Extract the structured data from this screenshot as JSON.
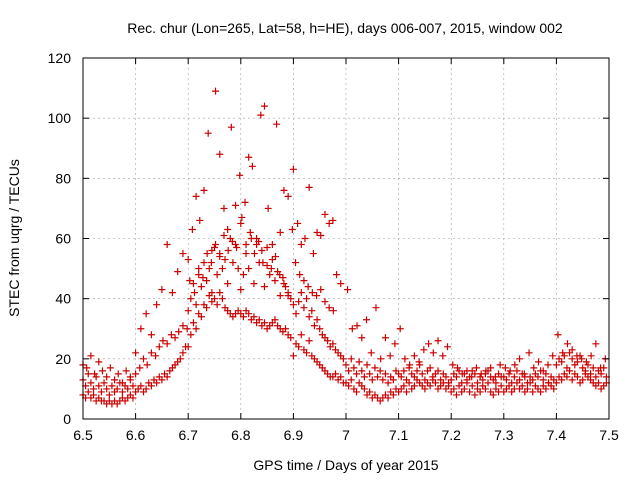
{
  "chart_data": {
    "type": "scatter",
    "title": "Rec. chur (Lon=265, Lat=58, h=HE), days 006-007, 2015, window 002",
    "xlabel": "GPS time / Days of year 2015",
    "ylabel": "STEC from uqrg / TECUs",
    "xlim": [
      6.5,
      7.5
    ],
    "ylim": [
      0,
      120
    ],
    "xticks": [
      "6.5",
      "6.6",
      "6.7",
      "6.8",
      "6.9",
      "7",
      "7.1",
      "7.2",
      "7.3",
      "7.4",
      "7.5"
    ],
    "yticks": [
      "0",
      "20",
      "40",
      "60",
      "80",
      "100",
      "120"
    ],
    "grid": true,
    "marker": "plus",
    "color": "#cc0000",
    "series": [
      {
        "x": [
          6.5,
          6.505,
          6.51,
          6.515,
          6.52,
          6.525,
          6.53,
          6.535,
          6.54,
          6.545,
          6.55,
          6.555,
          6.56,
          6.565,
          6.57,
          6.575,
          6.58,
          6.585,
          6.59,
          6.595,
          6.5,
          6.505,
          6.51,
          6.515,
          6.52,
          6.525,
          6.53,
          6.535,
          6.54,
          6.545,
          6.55,
          6.555,
          6.56,
          6.565,
          6.57,
          6.575,
          6.58,
          6.585,
          6.59,
          6.595,
          6.5,
          6.507,
          6.515,
          6.522,
          6.53,
          6.537,
          6.545,
          6.552,
          6.56,
          6.567,
          6.575,
          6.582,
          6.59,
          6.6,
          6.605,
          6.61,
          6.615,
          6.62,
          6.625,
          6.63,
          6.635,
          6.64,
          6.645,
          6.65,
          6.655,
          6.66,
          6.665,
          6.67,
          6.675,
          6.68,
          6.685,
          6.69,
          6.695,
          6.6,
          6.608,
          6.615,
          6.622,
          6.63,
          6.638,
          6.645,
          6.652,
          6.66,
          6.668,
          6.675,
          6.682,
          6.69,
          6.698,
          6.6,
          6.61,
          6.62,
          6.63,
          6.64,
          6.65,
          6.66,
          6.67,
          6.68,
          6.69,
          6.7,
          6.705,
          6.71,
          6.715,
          6.72,
          6.725,
          6.73,
          6.735,
          6.74,
          6.745,
          6.75,
          6.755,
          6.76,
          6.765,
          6.77,
          6.775,
          6.78,
          6.785,
          6.79,
          6.795,
          6.7,
          6.705,
          6.71,
          6.715,
          6.72,
          6.725,
          6.73,
          6.735,
          6.74,
          6.745,
          6.75,
          6.755,
          6.76,
          6.765,
          6.77,
          6.775,
          6.78,
          6.785,
          6.79,
          6.795,
          6.7,
          6.708,
          6.715,
          6.722,
          6.73,
          6.738,
          6.745,
          6.752,
          6.76,
          6.768,
          6.775,
          6.782,
          6.79,
          6.798,
          6.703,
          6.712,
          6.72,
          6.728,
          6.736,
          6.744,
          6.752,
          6.76,
          6.768,
          6.776,
          6.784,
          6.792,
          6.8,
          6.805,
          6.81,
          6.815,
          6.82,
          6.825,
          6.83,
          6.835,
          6.84,
          6.845,
          6.85,
          6.855,
          6.86,
          6.865,
          6.87,
          6.875,
          6.88,
          6.885,
          6.89,
          6.895,
          6.8,
          6.805,
          6.81,
          6.815,
          6.82,
          6.825,
          6.83,
          6.835,
          6.84,
          6.845,
          6.85,
          6.855,
          6.86,
          6.865,
          6.87,
          6.875,
          6.88,
          6.885,
          6.89,
          6.895,
          6.8,
          6.808,
          6.815,
          6.822,
          6.83,
          6.838,
          6.845,
          6.852,
          6.86,
          6.868,
          6.875,
          6.882,
          6.89,
          6.898,
          6.802,
          6.81,
          6.818,
          6.826,
          6.834,
          6.842,
          6.85,
          6.858,
          6.866,
          6.874,
          6.882,
          6.89,
          6.9,
          6.905,
          6.91,
          6.915,
          6.92,
          6.925,
          6.93,
          6.935,
          6.94,
          6.945,
          6.95,
          6.955,
          6.96,
          6.965,
          6.97,
          6.975,
          6.98,
          6.985,
          6.99,
          6.995,
          6.9,
          6.905,
          6.91,
          6.915,
          6.92,
          6.925,
          6.93,
          6.935,
          6.94,
          6.945,
          6.95,
          6.955,
          6.96,
          6.965,
          6.97,
          6.975,
          6.98,
          6.985,
          6.99,
          6.995,
          6.9,
          6.908,
          6.915,
          6.922,
          6.93,
          6.938,
          6.945,
          6.952,
          6.96,
          6.968,
          6.975,
          6.982,
          6.99,
          6.904,
          6.912,
          6.92,
          6.928,
          6.936,
          6.944,
          6.952,
          6.96,
          6.968,
          6.976,
          7.0,
          7.005,
          7.01,
          7.015,
          7.02,
          7.025,
          7.03,
          7.035,
          7.04,
          7.045,
          7.05,
          7.055,
          7.06,
          7.065,
          7.07,
          7.075,
          7.08,
          7.085,
          7.09,
          7.095,
          7.0,
          7.005,
          7.01,
          7.015,
          7.02,
          7.025,
          7.03,
          7.035,
          7.04,
          7.045,
          7.05,
          7.055,
          7.06,
          7.065,
          7.07,
          7.075,
          7.08,
          7.085,
          7.09,
          7.095,
          7.003,
          7.012,
          7.021,
          7.03,
          7.039,
          7.048,
          7.057,
          7.066,
          7.075,
          7.084,
          7.093,
          7.1,
          7.105,
          7.11,
          7.115,
          7.12,
          7.125,
          7.13,
          7.135,
          7.14,
          7.145,
          7.15,
          7.155,
          7.16,
          7.165,
          7.17,
          7.175,
          7.18,
          7.185,
          7.19,
          7.195,
          7.1,
          7.105,
          7.11,
          7.115,
          7.12,
          7.125,
          7.13,
          7.135,
          7.14,
          7.145,
          7.15,
          7.155,
          7.16,
          7.165,
          7.17,
          7.175,
          7.18,
          7.185,
          7.19,
          7.195,
          7.103,
          7.112,
          7.121,
          7.13,
          7.139,
          7.148,
          7.157,
          7.166,
          7.175,
          7.184,
          7.193,
          7.2,
          7.205,
          7.21,
          7.215,
          7.22,
          7.225,
          7.23,
          7.235,
          7.24,
          7.245,
          7.25,
          7.255,
          7.26,
          7.265,
          7.27,
          7.275,
          7.28,
          7.285,
          7.29,
          7.295,
          7.2,
          7.205,
          7.21,
          7.215,
          7.22,
          7.225,
          7.23,
          7.235,
          7.24,
          7.245,
          7.25,
          7.255,
          7.26,
          7.265,
          7.27,
          7.275,
          7.28,
          7.285,
          7.29,
          7.295,
          7.203,
          7.212,
          7.221,
          7.23,
          7.239,
          7.248,
          7.257,
          7.266,
          7.275,
          7.284,
          7.293,
          7.3,
          7.305,
          7.31,
          7.315,
          7.32,
          7.325,
          7.33,
          7.335,
          7.34,
          7.345,
          7.35,
          7.355,
          7.36,
          7.365,
          7.37,
          7.375,
          7.38,
          7.385,
          7.39,
          7.395,
          7.3,
          7.305,
          7.31,
          7.315,
          7.32,
          7.325,
          7.33,
          7.335,
          7.34,
          7.345,
          7.35,
          7.355,
          7.36,
          7.365,
          7.37,
          7.375,
          7.38,
          7.385,
          7.39,
          7.395,
          7.303,
          7.312,
          7.321,
          7.33,
          7.339,
          7.348,
          7.357,
          7.366,
          7.375,
          7.384,
          7.393,
          7.4,
          7.405,
          7.41,
          7.415,
          7.42,
          7.425,
          7.43,
          7.435,
          7.44,
          7.445,
          7.45,
          7.455,
          7.46,
          7.465,
          7.47,
          7.475,
          7.48,
          7.485,
          7.49,
          7.495,
          7.4,
          7.405,
          7.41,
          7.415,
          7.42,
          7.425,
          7.43,
          7.435,
          7.44,
          7.445,
          7.45,
          7.455,
          7.46,
          7.465,
          7.47,
          7.475,
          7.48,
          7.485,
          7.49,
          7.495,
          7.403,
          7.412,
          7.421,
          7.43,
          7.439,
          7.448,
          7.457,
          7.466,
          7.475,
          7.484,
          7.493
        ],
        "y": [
          8,
          7,
          9,
          7,
          8,
          6,
          7,
          6,
          6,
          5,
          6,
          5,
          6,
          5,
          6,
          7,
          6,
          7,
          8,
          7,
          13,
          11,
          15,
          12,
          10,
          14,
          11,
          9,
          12,
          10,
          8,
          11,
          9,
          10,
          12,
          9,
          11,
          10,
          13,
          11,
          18,
          17,
          21,
          15,
          19,
          16,
          14,
          17,
          13,
          15,
          12,
          16,
          14,
          9,
          10,
          11,
          9,
          10,
          12,
          11,
          13,
          12,
          14,
          13,
          15,
          14,
          16,
          17,
          18,
          19,
          20,
          22,
          24,
          15,
          17,
          20,
          18,
          22,
          21,
          24,
          26,
          25,
          28,
          27,
          29,
          31,
          30,
          22,
          30,
          35,
          28,
          38,
          43,
          58,
          42,
          49,
          55,
          24,
          28,
          32,
          30,
          35,
          34,
          38,
          37,
          41,
          39,
          40,
          38,
          42,
          40,
          37,
          36,
          35,
          34,
          35,
          36,
          36,
          40,
          45,
          38,
          48,
          44,
          52,
          46,
          50,
          42,
          57,
          48,
          55,
          50,
          53,
          45,
          60,
          52,
          58,
          50,
          53,
          63,
          74,
          66,
          76,
          95,
          56,
          109,
          88,
          70,
          63,
          97,
          71,
          81,
          46,
          42,
          50,
          47,
          55,
          52,
          58,
          54,
          61,
          56,
          59,
          57,
          35,
          34,
          36,
          35,
          33,
          34,
          32,
          33,
          31,
          32,
          30,
          31,
          32,
          33,
          31,
          30,
          29,
          30,
          28,
          27,
          43,
          48,
          55,
          50,
          60,
          45,
          58,
          52,
          56,
          44,
          51,
          48,
          53,
          46,
          49,
          41,
          47,
          44,
          42,
          40,
          65,
          72,
          87,
          84,
          60,
          101,
          104,
          70,
          58,
          98,
          62,
          76,
          74,
          63,
          67,
          58,
          62,
          55,
          59,
          52,
          57,
          50,
          54,
          48,
          45,
          41,
          21,
          25,
          24,
          28,
          23,
          22,
          26,
          21,
          20,
          19,
          18,
          17,
          16,
          15,
          14,
          14,
          15,
          13,
          14,
          12,
          38,
          35,
          39,
          42,
          37,
          40,
          34,
          36,
          31,
          33,
          30,
          28,
          27,
          26,
          24,
          25,
          23,
          22,
          21,
          20,
          83,
          65,
          58,
          60,
          77,
          55,
          62,
          61,
          68,
          65,
          66,
          48,
          45,
          52,
          48,
          46,
          44,
          42,
          41,
          43,
          39,
          37,
          36,
          12,
          11,
          13,
          10,
          9,
          12,
          11,
          10,
          8,
          9,
          7,
          8,
          7,
          6,
          7,
          8,
          7,
          9,
          8,
          10,
          18,
          16,
          20,
          17,
          15,
          19,
          16,
          14,
          18,
          15,
          13,
          17,
          14,
          16,
          13,
          15,
          12,
          14,
          13,
          16,
          43,
          30,
          31,
          27,
          33,
          22,
          37,
          20,
          27,
          21,
          25,
          9,
          10,
          11,
          9,
          12,
          10,
          11,
          13,
          12,
          11,
          10,
          12,
          11,
          13,
          12,
          10,
          11,
          12,
          10,
          11,
          15,
          14,
          16,
          13,
          17,
          15,
          14,
          16,
          18,
          15,
          13,
          16,
          17,
          14,
          15,
          16,
          13,
          15,
          14,
          12,
          30,
          20,
          18,
          21,
          19,
          23,
          25,
          22,
          26,
          21,
          24,
          9,
          10,
          8,
          11,
          9,
          10,
          12,
          9,
          11,
          8,
          10,
          9,
          11,
          10,
          12,
          9,
          8,
          10,
          9,
          11,
          13,
          15,
          14,
          16,
          12,
          15,
          13,
          14,
          16,
          15,
          12,
          14,
          13,
          15,
          16,
          14,
          13,
          12,
          15,
          14,
          18,
          17,
          15,
          16,
          14,
          17,
          15,
          16,
          17,
          14,
          18,
          9,
          10,
          11,
          9,
          10,
          12,
          10,
          11,
          9,
          10,
          12,
          9,
          11,
          10,
          9,
          11,
          10,
          12,
          11,
          10,
          14,
          13,
          15,
          12,
          14,
          16,
          13,
          15,
          14,
          12,
          14,
          13,
          15,
          14,
          16,
          13,
          15,
          12,
          14,
          13,
          17,
          16,
          18,
          20,
          15,
          22,
          17,
          19,
          16,
          18,
          21,
          12,
          14,
          13,
          15,
          14,
          16,
          13,
          15,
          14,
          12,
          13,
          15,
          14,
          13,
          12,
          11,
          12,
          10,
          11,
          12,
          18,
          20,
          19,
          21,
          17,
          22,
          20,
          18,
          19,
          21,
          17,
          16,
          18,
          15,
          17,
          14,
          16,
          15,
          17,
          14,
          28,
          22,
          25,
          23,
          21,
          20,
          19,
          21,
          25,
          17,
          20
        ]
      }
    ]
  }
}
